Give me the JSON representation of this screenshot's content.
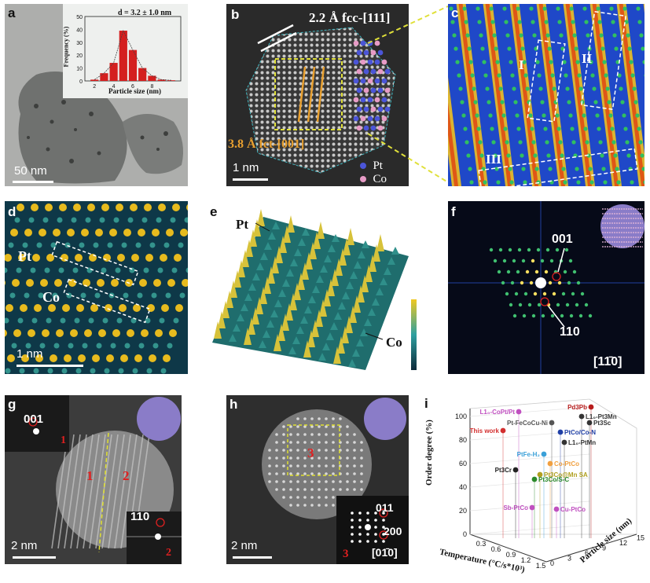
{
  "panels": {
    "a": {
      "label": "a",
      "scale": "50 nm",
      "hist": {
        "title": "d = 3.2 ± 1.0 nm",
        "xlabel": "Particle size (nm)",
        "ylabel": "Frequency (%)",
        "yticks": [
          "0",
          "10",
          "20",
          "30",
          "40",
          "50"
        ],
        "xticks": [
          "2",
          "4",
          "6",
          "8"
        ],
        "values": [
          1,
          6,
          14,
          39,
          24,
          10,
          4,
          1,
          0.5
        ]
      }
    },
    "b": {
      "label": "b",
      "annot_top": "2.2 Å fcc-[111]",
      "annot_bottom": "3.8 Å fct-[001]",
      "scale": "1 nm",
      "legend": [
        {
          "name": "Pt",
          "color": "#4b55d8"
        },
        {
          "name": "Co",
          "color": "#e79bc6"
        }
      ]
    },
    "c": {
      "label": "c",
      "regions": [
        "I",
        "II",
        "III"
      ]
    },
    "d": {
      "label": "d",
      "pt": "Pt",
      "co": "Co",
      "scale": "1 nm"
    },
    "e": {
      "label": "e",
      "pt": "Pt",
      "co": "Co"
    },
    "f": {
      "label": "f",
      "spot1": "001",
      "spot2": "110",
      "zone": "[11̄0]"
    },
    "g": {
      "label": "g",
      "fft1": "001",
      "fft2": "110",
      "grain1": "1",
      "grain2": "2",
      "inset1": "1",
      "inset2": "2",
      "scale": "2 nm"
    },
    "h": {
      "label": "h",
      "region": "3",
      "fft": [
        "011",
        "200",
        "[01̄0]"
      ],
      "inset": "3",
      "scale": "2 nm"
    },
    "i": {
      "label": "i",
      "zlabel": "Order degree (%)",
      "xlabel": "Temperature (°C/s*10³)",
      "ylabel": "Particle size (nm)",
      "zticks": [
        "0",
        "20",
        "40",
        "60",
        "80",
        "100"
      ],
      "xticks": [
        "0.3",
        "0.6",
        "0.9",
        "1.2",
        "1.5"
      ],
      "yticks": [
        "0",
        "3",
        "6",
        "9",
        "12",
        "15"
      ],
      "points": [
        {
          "label": "Pd3Pb",
          "color": "#b71c1c"
        },
        {
          "label": "L1₀-CoPt/Pt",
          "color": "#c04fc0"
        },
        {
          "label": "L1₀-Pt3Mn",
          "color": "#333333"
        },
        {
          "label": "Pt-FeCoCu-Ni",
          "color": "#555555"
        },
        {
          "label": "Pt3Sc",
          "color": "#333333"
        },
        {
          "label": "This work",
          "color": "#d32f2f"
        },
        {
          "label": "PtCo/Co-N",
          "color": "#1f3fa6"
        },
        {
          "label": "L1₀-PtMn",
          "color": "#333333"
        },
        {
          "label": "PtFe-H₂",
          "color": "#3aa0d8"
        },
        {
          "label": "Co-PtCo",
          "color": "#f0a040"
        },
        {
          "label": "Pt3Cr",
          "color": "#222222"
        },
        {
          "label": "Pt3Co@Mn SA",
          "color": "#b0a020"
        },
        {
          "label": "Pt3Co/S-C",
          "color": "#2a8a2a"
        },
        {
          "label": "Sb-PtCo",
          "color": "#c050c0"
        },
        {
          "label": "Cu-PtCo",
          "color": "#c050c0"
        }
      ]
    }
  }
}
